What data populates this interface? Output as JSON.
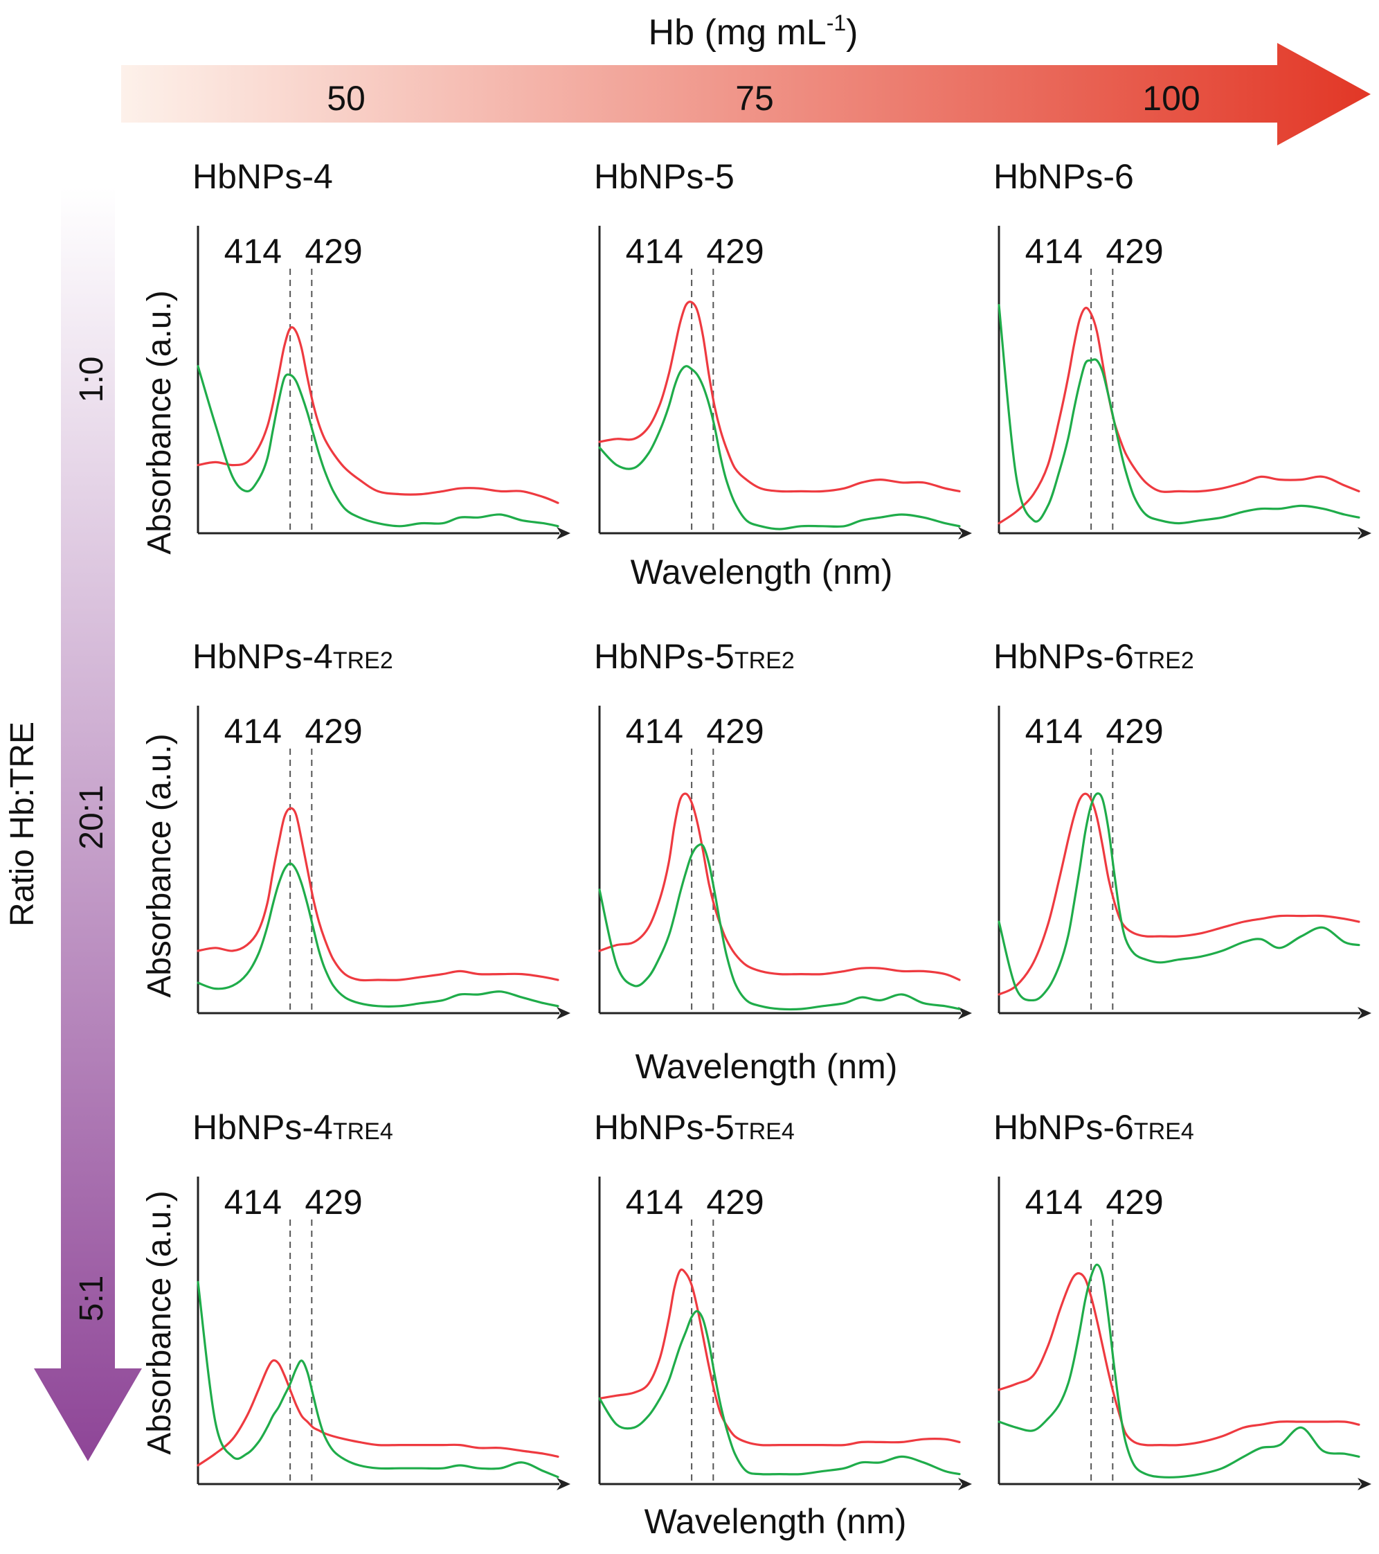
{
  "colors": {
    "series_a": "#ee3a40",
    "series_b": "#1fac4a",
    "axis": "#222222",
    "guide": "#555555",
    "conc_arrow_start": "#fdf1ea",
    "conc_arrow_end": "#e23726",
    "ratio_arrow_start": "#ffffff",
    "ratio_arrow_end": "#8e4597"
  },
  "concentration_arrow": {
    "title_main": "Hb (mg mL",
    "title_sup": "-1",
    "title_close": ")",
    "ticks": [
      "50",
      "75",
      "100"
    ]
  },
  "ratio_arrow": {
    "title": "Ratio Hb:TRE",
    "ticks": [
      "1:0",
      "20:1",
      "5:1"
    ]
  },
  "axis_labels": {
    "y": "Absorbance (a.u.)",
    "x": "Wavelength (nm)"
  },
  "chart_data": [
    {
      "type": "line",
      "title": "HbNPs-4",
      "subtitle": "",
      "xlabel": "Wavelength (nm)",
      "ylabel": "Absorbance (a.u.)",
      "peak_markers": [
        "414",
        "429"
      ],
      "marker_x": [
        414,
        429
      ],
      "xlim": [
        350,
        600
      ],
      "ylim": [
        0,
        1
      ],
      "x": [
        350,
        362,
        374,
        384,
        392,
        398,
        402,
        406,
        410,
        414,
        418,
        422,
        426,
        430,
        434,
        438,
        444,
        452,
        462,
        475,
        490,
        505,
        520,
        532,
        545,
        560,
        575,
        590,
        600
      ],
      "series": [
        {
          "name": "red",
          "values": [
            0.22,
            0.23,
            0.22,
            0.23,
            0.28,
            0.35,
            0.43,
            0.53,
            0.63,
            0.69,
            0.68,
            0.62,
            0.52,
            0.43,
            0.36,
            0.31,
            0.26,
            0.21,
            0.17,
            0.13,
            0.12,
            0.12,
            0.13,
            0.14,
            0.14,
            0.13,
            0.13,
            0.11,
            0.09
          ]
        },
        {
          "name": "green",
          "values": [
            0.56,
            0.36,
            0.18,
            0.13,
            0.17,
            0.24,
            0.34,
            0.44,
            0.52,
            0.53,
            0.51,
            0.46,
            0.4,
            0.33,
            0.26,
            0.2,
            0.13,
            0.07,
            0.04,
            0.02,
            0.01,
            0.02,
            0.02,
            0.04,
            0.04,
            0.05,
            0.03,
            0.02,
            0.01
          ]
        }
      ]
    },
    {
      "type": "line",
      "title": "HbNPs-5",
      "subtitle": "",
      "xlabel": "Wavelength (nm)",
      "ylabel": "Absorbance (a.u.)",
      "peak_markers": [
        "414",
        "429"
      ],
      "marker_x": [
        414,
        429
      ],
      "xlim": [
        350,
        600
      ],
      "ylim": [
        0,
        1
      ],
      "x": [
        350,
        362,
        374,
        384,
        392,
        398,
        402,
        406,
        410,
        414,
        418,
        422,
        426,
        430,
        434,
        438,
        444,
        452,
        462,
        475,
        490,
        505,
        520,
        532,
        545,
        560,
        575,
        590,
        600
      ],
      "series": [
        {
          "name": "red",
          "values": [
            0.3,
            0.31,
            0.31,
            0.35,
            0.43,
            0.53,
            0.62,
            0.71,
            0.77,
            0.78,
            0.75,
            0.66,
            0.53,
            0.42,
            0.34,
            0.28,
            0.21,
            0.17,
            0.14,
            0.13,
            0.13,
            0.13,
            0.14,
            0.16,
            0.17,
            0.16,
            0.16,
            0.14,
            0.13
          ]
        },
        {
          "name": "green",
          "values": [
            0.28,
            0.22,
            0.21,
            0.26,
            0.34,
            0.42,
            0.49,
            0.54,
            0.56,
            0.55,
            0.53,
            0.49,
            0.43,
            0.35,
            0.25,
            0.17,
            0.09,
            0.03,
            0.01,
            0.0,
            0.01,
            0.01,
            0.01,
            0.03,
            0.04,
            0.05,
            0.04,
            0.02,
            0.01
          ]
        }
      ]
    },
    {
      "type": "line",
      "title": "HbNPs-6",
      "subtitle": "",
      "xlabel": "Wavelength (nm)",
      "ylabel": "Absorbance (a.u.)",
      "peak_markers": [
        "414",
        "429"
      ],
      "marker_x": [
        414,
        429
      ],
      "xlim": [
        350,
        600
      ],
      "ylim": [
        0,
        1
      ],
      "x": [
        350,
        362,
        374,
        384,
        392,
        398,
        402,
        406,
        410,
        414,
        418,
        422,
        426,
        430,
        434,
        438,
        444,
        452,
        462,
        475,
        490,
        505,
        520,
        532,
        545,
        560,
        575,
        590,
        600
      ],
      "series": [
        {
          "name": "red",
          "values": [
            0.02,
            0.06,
            0.12,
            0.22,
            0.38,
            0.52,
            0.63,
            0.72,
            0.76,
            0.74,
            0.68,
            0.57,
            0.46,
            0.37,
            0.31,
            0.26,
            0.21,
            0.16,
            0.13,
            0.13,
            0.13,
            0.14,
            0.16,
            0.18,
            0.17,
            0.17,
            0.18,
            0.15,
            0.13
          ]
        },
        {
          "name": "green",
          "values": [
            0.77,
            0.18,
            0.03,
            0.08,
            0.2,
            0.31,
            0.41,
            0.5,
            0.57,
            0.58,
            0.58,
            0.54,
            0.46,
            0.37,
            0.28,
            0.2,
            0.11,
            0.05,
            0.03,
            0.02,
            0.03,
            0.04,
            0.06,
            0.07,
            0.07,
            0.08,
            0.07,
            0.05,
            0.04
          ]
        }
      ]
    },
    {
      "type": "line",
      "title": "HbNPs-4",
      "subtitle": "TRE2",
      "xlabel": "Wavelength (nm)",
      "ylabel": "Absorbance (a.u.)",
      "peak_markers": [
        "414",
        "429"
      ],
      "marker_x": [
        414,
        429
      ],
      "xlim": [
        350,
        600
      ],
      "ylim": [
        0,
        1
      ],
      "x": [
        350,
        362,
        374,
        384,
        392,
        398,
        402,
        406,
        410,
        414,
        418,
        422,
        426,
        430,
        434,
        438,
        444,
        452,
        462,
        475,
        490,
        505,
        520,
        532,
        545,
        560,
        575,
        590,
        600
      ],
      "series": [
        {
          "name": "red",
          "values": [
            0.2,
            0.21,
            0.2,
            0.22,
            0.27,
            0.36,
            0.47,
            0.57,
            0.66,
            0.69,
            0.67,
            0.58,
            0.48,
            0.38,
            0.3,
            0.24,
            0.17,
            0.12,
            0.1,
            0.1,
            0.1,
            0.11,
            0.12,
            0.13,
            0.12,
            0.12,
            0.12,
            0.11,
            0.1
          ]
        },
        {
          "name": "green",
          "values": [
            0.09,
            0.07,
            0.08,
            0.12,
            0.19,
            0.28,
            0.36,
            0.43,
            0.48,
            0.5,
            0.48,
            0.43,
            0.36,
            0.28,
            0.2,
            0.14,
            0.08,
            0.04,
            0.02,
            0.01,
            0.01,
            0.02,
            0.03,
            0.05,
            0.05,
            0.06,
            0.04,
            0.02,
            0.01
          ]
        }
      ]
    },
    {
      "type": "line",
      "title": "HbNPs-5",
      "subtitle": "TRE2",
      "xlabel": "Wavelength (nm)",
      "ylabel": "Absorbance (a.u.)",
      "peak_markers": [
        "414",
        "429"
      ],
      "marker_x": [
        414,
        429
      ],
      "xlim": [
        350,
        600
      ],
      "ylim": [
        0,
        1
      ],
      "x": [
        350,
        362,
        374,
        384,
        392,
        398,
        402,
        406,
        410,
        414,
        418,
        422,
        426,
        430,
        434,
        438,
        444,
        452,
        462,
        475,
        490,
        505,
        520,
        532,
        545,
        560,
        575,
        590,
        600
      ],
      "series": [
        {
          "name": "red",
          "values": [
            0.2,
            0.22,
            0.23,
            0.28,
            0.38,
            0.5,
            0.63,
            0.72,
            0.74,
            0.71,
            0.64,
            0.54,
            0.43,
            0.35,
            0.29,
            0.24,
            0.19,
            0.15,
            0.13,
            0.12,
            0.12,
            0.12,
            0.13,
            0.14,
            0.14,
            0.13,
            0.13,
            0.12,
            0.1
          ]
        },
        {
          "name": "green",
          "values": [
            0.41,
            0.15,
            0.08,
            0.11,
            0.18,
            0.25,
            0.32,
            0.4,
            0.47,
            0.53,
            0.56,
            0.56,
            0.5,
            0.4,
            0.29,
            0.19,
            0.09,
            0.03,
            0.01,
            0.0,
            0.0,
            0.01,
            0.02,
            0.04,
            0.03,
            0.05,
            0.02,
            0.01,
            0.0
          ]
        }
      ]
    },
    {
      "type": "line",
      "title": "HbNPs-6",
      "subtitle": "TRE2",
      "xlabel": "Wavelength (nm)",
      "ylabel": "Absorbance (a.u.)",
      "peak_markers": [
        "414",
        "429"
      ],
      "marker_x": [
        414,
        429
      ],
      "xlim": [
        350,
        600
      ],
      "ylim": [
        0,
        1
      ],
      "x": [
        350,
        362,
        374,
        384,
        392,
        398,
        402,
        406,
        410,
        414,
        418,
        422,
        426,
        430,
        434,
        438,
        444,
        452,
        462,
        475,
        490,
        505,
        520,
        532,
        545,
        560,
        575,
        590,
        600
      ],
      "series": [
        {
          "name": "red",
          "values": [
            0.05,
            0.08,
            0.16,
            0.29,
            0.45,
            0.58,
            0.66,
            0.72,
            0.74,
            0.72,
            0.66,
            0.56,
            0.45,
            0.37,
            0.31,
            0.28,
            0.26,
            0.25,
            0.25,
            0.25,
            0.26,
            0.28,
            0.3,
            0.31,
            0.32,
            0.32,
            0.32,
            0.31,
            0.3
          ]
        },
        {
          "name": "green",
          "values": [
            0.3,
            0.07,
            0.03,
            0.07,
            0.15,
            0.25,
            0.36,
            0.48,
            0.61,
            0.7,
            0.74,
            0.72,
            0.62,
            0.47,
            0.33,
            0.24,
            0.19,
            0.17,
            0.16,
            0.17,
            0.18,
            0.2,
            0.23,
            0.24,
            0.21,
            0.25,
            0.28,
            0.23,
            0.22
          ]
        }
      ]
    },
    {
      "type": "line",
      "title": "HbNPs-4",
      "subtitle": "TRE4",
      "xlabel": "Wavelength (nm)",
      "ylabel": "Absorbance (a.u.)",
      "peak_markers": [
        "414",
        "429"
      ],
      "marker_x": [
        414,
        429
      ],
      "xlim": [
        350,
        600
      ],
      "ylim": [
        0,
        1
      ],
      "x": [
        350,
        362,
        374,
        384,
        392,
        398,
        402,
        406,
        410,
        414,
        418,
        422,
        426,
        430,
        434,
        438,
        444,
        452,
        462,
        475,
        490,
        505,
        520,
        532,
        545,
        560,
        575,
        590,
        600
      ],
      "series": [
        {
          "name": "red",
          "values": [
            0.05,
            0.09,
            0.14,
            0.22,
            0.31,
            0.38,
            0.41,
            0.4,
            0.36,
            0.31,
            0.26,
            0.22,
            0.2,
            0.18,
            0.17,
            0.16,
            0.15,
            0.14,
            0.13,
            0.12,
            0.12,
            0.12,
            0.12,
            0.12,
            0.11,
            0.11,
            0.1,
            0.09,
            0.08
          ]
        },
        {
          "name": "green",
          "values": [
            0.68,
            0.2,
            0.08,
            0.09,
            0.13,
            0.18,
            0.22,
            0.25,
            0.29,
            0.33,
            0.38,
            0.41,
            0.37,
            0.29,
            0.21,
            0.15,
            0.1,
            0.07,
            0.05,
            0.04,
            0.04,
            0.04,
            0.04,
            0.05,
            0.04,
            0.04,
            0.06,
            0.03,
            0.01
          ]
        }
      ]
    },
    {
      "type": "line",
      "title": "HbNPs-5",
      "subtitle": "TRE4",
      "xlabel": "Wavelength (nm)",
      "ylabel": "Absorbance (a.u.)",
      "peak_markers": [
        "414",
        "429"
      ],
      "marker_x": [
        414,
        429
      ],
      "xlim": [
        350,
        600
      ],
      "ylim": [
        0,
        1
      ],
      "x": [
        350,
        362,
        374,
        384,
        392,
        398,
        402,
        406,
        410,
        414,
        418,
        422,
        426,
        430,
        434,
        438,
        444,
        452,
        462,
        475,
        490,
        505,
        520,
        532,
        545,
        560,
        575,
        590,
        600
      ],
      "series": [
        {
          "name": "red",
          "values": [
            0.28,
            0.29,
            0.3,
            0.33,
            0.42,
            0.55,
            0.66,
            0.72,
            0.71,
            0.67,
            0.59,
            0.49,
            0.39,
            0.3,
            0.23,
            0.19,
            0.15,
            0.13,
            0.12,
            0.12,
            0.12,
            0.12,
            0.12,
            0.13,
            0.13,
            0.13,
            0.14,
            0.14,
            0.13
          ]
        },
        {
          "name": "green",
          "values": [
            0.28,
            0.19,
            0.18,
            0.22,
            0.28,
            0.34,
            0.4,
            0.46,
            0.51,
            0.56,
            0.58,
            0.55,
            0.47,
            0.36,
            0.26,
            0.18,
            0.09,
            0.03,
            0.02,
            0.02,
            0.02,
            0.03,
            0.04,
            0.06,
            0.06,
            0.08,
            0.06,
            0.03,
            0.02
          ]
        }
      ]
    },
    {
      "type": "line",
      "title": "HbNPs-6",
      "subtitle": "TRE4",
      "xlabel": "Wavelength (nm)",
      "ylabel": "Absorbance (a.u.)",
      "peak_markers": [
        "414",
        "429"
      ],
      "marker_x": [
        414,
        429
      ],
      "xlim": [
        350,
        600
      ],
      "ylim": [
        0,
        1
      ],
      "x": [
        350,
        362,
        374,
        384,
        392,
        398,
        402,
        406,
        410,
        414,
        418,
        422,
        426,
        430,
        434,
        438,
        444,
        452,
        462,
        475,
        490,
        505,
        520,
        532,
        545,
        560,
        575,
        590,
        600
      ],
      "series": [
        {
          "name": "red",
          "values": [
            0.31,
            0.33,
            0.36,
            0.46,
            0.58,
            0.66,
            0.7,
            0.71,
            0.69,
            0.63,
            0.55,
            0.46,
            0.37,
            0.29,
            0.22,
            0.16,
            0.13,
            0.12,
            0.12,
            0.12,
            0.13,
            0.15,
            0.18,
            0.19,
            0.2,
            0.2,
            0.2,
            0.2,
            0.19
          ]
        },
        {
          "name": "green",
          "values": [
            0.2,
            0.18,
            0.17,
            0.21,
            0.26,
            0.33,
            0.41,
            0.51,
            0.62,
            0.7,
            0.74,
            0.7,
            0.56,
            0.39,
            0.24,
            0.13,
            0.05,
            0.02,
            0.01,
            0.01,
            0.02,
            0.04,
            0.08,
            0.11,
            0.12,
            0.18,
            0.1,
            0.09,
            0.08
          ]
        }
      ]
    }
  ]
}
